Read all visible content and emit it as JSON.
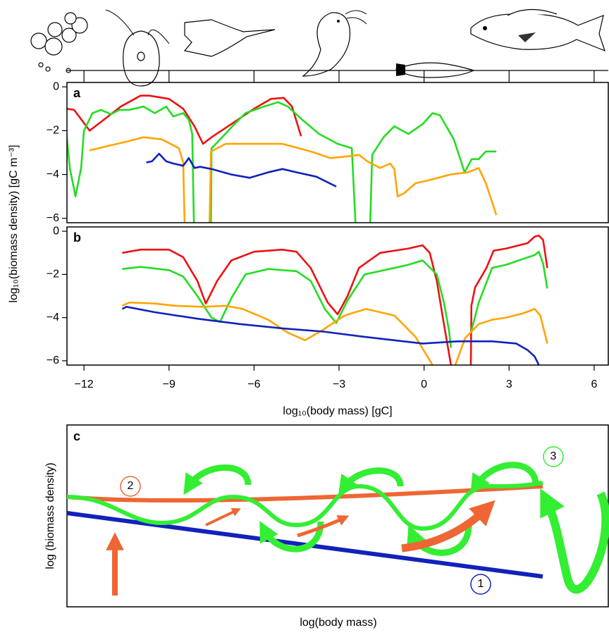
{
  "chart_data": [
    {
      "type": "line",
      "label": "a",
      "y_label": "log₁₀(biomass density) [gC m⁻³]",
      "xlim": [
        -12.6,
        6.5
      ],
      "xticks": [
        -12,
        -9,
        -6,
        -3,
        0,
        3,
        6
      ],
      "ylim": [
        -6.2,
        0.2
      ],
      "yticks": [
        {
          "value": 0,
          "label": "0"
        },
        {
          "value": -2,
          "label": "−2"
        },
        {
          "value": -4,
          "label": "−4"
        },
        {
          "value": -6,
          "label": "−6"
        }
      ],
      "series": [
        {
          "color": "#ee1111",
          "x": [
            -12.6,
            -12.35,
            -11.8,
            -11.3,
            -10.7,
            -10.0,
            -9.7,
            -9.0,
            -8.5,
            -8.1,
            -7.8,
            -7.5,
            -6.8,
            -6.0,
            -5.4,
            -4.95,
            -4.66,
            -4.34
          ],
          "values": [
            -1.0,
            -1.05,
            -2.0,
            -1.5,
            -0.9,
            -0.4,
            -0.4,
            -0.55,
            -1.0,
            -1.8,
            -2.6,
            -2.3,
            -1.7,
            -1.0,
            -0.55,
            -0.5,
            -0.9,
            -2.25
          ]
        },
        {
          "color": "#22dd22",
          "x": [
            -12.65,
            -12.5,
            -12.3,
            -12.1,
            -12.0,
            -11.7,
            -11.4,
            -11.05,
            -10.75,
            -10.4,
            -9.9,
            -9.5,
            -9.1,
            -8.85,
            -8.5,
            -8.3,
            -8.18,
            -8.12,
            -7.8,
            -7.52,
            -7.5,
            -7.27,
            -6.8,
            -6.3,
            -5.65,
            -5.15,
            -4.8,
            -4.3,
            -3.7,
            -3.05,
            -2.55,
            -2.42,
            -2.2,
            -1.9,
            -1.83,
            -1.43,
            -1.05,
            -0.55,
            -0.05,
            0.3,
            0.56,
            1.05,
            1.43,
            1.68,
            1.93,
            2.18,
            2.55
          ],
          "values": [
            -1.7,
            -3.7,
            -5.0,
            -3.7,
            -2.0,
            -1.2,
            -1.05,
            -1.25,
            -1.05,
            -1.05,
            -0.9,
            -1.2,
            -0.9,
            -1.35,
            -1.2,
            -1.5,
            -2.15,
            -6.2,
            null,
            -6.2,
            -2.8,
            -2.5,
            -1.85,
            -1.2,
            -0.9,
            -0.7,
            -0.9,
            -1.5,
            -2.15,
            -2.6,
            -2.8,
            -6.2,
            null,
            -6.2,
            -3.1,
            -2.3,
            -1.8,
            -2.15,
            -1.7,
            -1.2,
            -1.3,
            -2.4,
            -3.9,
            -3.3,
            -3.3,
            -2.95,
            -2.95
          ]
        },
        {
          "color": "#ffa500",
          "x": [
            -11.8,
            -11.0,
            -10.5,
            -9.9,
            -9.25,
            -8.65,
            -8.5,
            -8.45,
            -8.0,
            -7.57,
            -7.52,
            -7.0,
            -6.0,
            -5.0,
            -4.0,
            -3.3,
            -2.55,
            -2.3,
            -2.0,
            -1.55,
            -1.2,
            -1.05,
            -0.93,
            -0.7,
            -0.3,
            0.2,
            0.93,
            1.55,
            1.93,
            2.18,
            2.55
          ],
          "values": [
            -2.9,
            -2.65,
            -2.5,
            -2.3,
            -2.4,
            -2.8,
            -3.45,
            -6.2,
            null,
            -6.2,
            -2.95,
            -2.6,
            -2.6,
            -2.6,
            -2.95,
            -3.25,
            -3.15,
            -3.1,
            -3.4,
            -3.7,
            -3.5,
            -3.75,
            -5.0,
            -4.85,
            -4.4,
            -4.25,
            -4.0,
            -3.9,
            -3.7,
            -4.4,
            -5.85
          ]
        },
        {
          "color": "#1122bb",
          "x": [
            -9.8,
            -9.6,
            -9.35,
            -9.1,
            -8.85,
            -8.5,
            -8.3,
            -8.1,
            -7.9,
            -7.5,
            -6.8,
            -6.15,
            -5.5,
            -5.0,
            -4.5,
            -3.8,
            -3.1
          ],
          "values": [
            -3.45,
            -3.4,
            -3.05,
            -3.4,
            -3.5,
            -3.6,
            -3.25,
            -3.7,
            -3.65,
            -3.75,
            -4.0,
            -4.15,
            -3.9,
            -3.75,
            -3.9,
            -4.1,
            -4.55
          ]
        }
      ]
    },
    {
      "type": "line",
      "label": "b",
      "x_label": "log₁₀(body mass) [gC]",
      "xlim": [
        -12.6,
        6.5
      ],
      "xticks": [
        {
          "value": -12,
          "label": "−12"
        },
        {
          "value": -9,
          "label": "−9"
        },
        {
          "value": -6,
          "label": "−6"
        },
        {
          "value": -3,
          "label": "−3"
        },
        {
          "value": 0,
          "label": "0"
        },
        {
          "value": 3,
          "label": "3"
        },
        {
          "value": 6,
          "label": "6"
        }
      ],
      "ylim": [
        -6.2,
        0.2
      ],
      "yticks": [
        {
          "value": 0,
          "label": "0"
        },
        {
          "value": -2,
          "label": "−2"
        },
        {
          "value": -4,
          "label": "−4"
        },
        {
          "value": -6,
          "label": "−6"
        }
      ],
      "series": [
        {
          "color": "#ee1111",
          "x": [
            -10.65,
            -10.0,
            -9.0,
            -8.5,
            -8.0,
            -7.7,
            -7.3,
            -6.8,
            -6.0,
            -5.0,
            -4.5,
            -4.0,
            -3.4,
            -3.05,
            -2.7,
            -2.3,
            -1.55,
            -0.55,
            -0.05,
            0.2,
            0.45,
            0.7,
            0.95,
            1.3,
            1.65,
            1.67,
            1.8,
            2.2,
            2.45,
            2.9,
            3.65,
            3.9,
            4.05,
            4.2,
            4.35
          ],
          "values": [
            -1.0,
            -0.85,
            -0.85,
            -1.2,
            -2.3,
            -3.35,
            -2.3,
            -1.35,
            -0.95,
            -0.85,
            -0.95,
            -1.7,
            -3.3,
            -3.85,
            -3.0,
            -1.7,
            -1.0,
            -0.8,
            -0.65,
            -1.0,
            -2.3,
            -4.3,
            -6.2,
            null,
            -6.2,
            -3.45,
            -2.6,
            -1.7,
            -0.9,
            -0.8,
            -0.55,
            -0.25,
            -0.2,
            -0.4,
            -1.7
          ]
        },
        {
          "color": "#22dd22",
          "x": [
            -10.65,
            -10.0,
            -9.0,
            -8.5,
            -8.0,
            -7.5,
            -7.2,
            -6.8,
            -6.3,
            -5.5,
            -4.5,
            -4.0,
            -3.5,
            -3.1,
            -2.7,
            -2.1,
            -1.05,
            -0.55,
            -0.05,
            0.45,
            0.7,
            0.88,
            0.95,
            1.3,
            1.67,
            1.93,
            2.4,
            2.9,
            3.9,
            4.05,
            4.2,
            4.35
          ],
          "values": [
            -1.75,
            -1.65,
            -1.8,
            -2.1,
            -3.0,
            -4.0,
            -4.2,
            -3.1,
            -2.0,
            -1.75,
            -1.85,
            -2.3,
            -3.6,
            -4.25,
            -3.2,
            -2.0,
            -1.7,
            -1.55,
            -1.35,
            -2.0,
            -3.3,
            -4.6,
            -5.4,
            null,
            -4.6,
            -3.3,
            -1.7,
            -1.55,
            -1.1,
            -0.95,
            -1.5,
            -2.65
          ]
        },
        {
          "color": "#ffa500",
          "x": [
            -10.65,
            -10.4,
            -9.5,
            -8.8,
            -7.8,
            -7.0,
            -6.4,
            -5.5,
            -4.8,
            -4.2,
            -3.55,
            -2.8,
            -2.05,
            -1.05,
            -0.3,
            0.3,
            0.7,
            1.1,
            1.45,
            1.93,
            2.4,
            2.9,
            3.5,
            3.9,
            4.1,
            4.35
          ],
          "values": [
            -3.45,
            -3.3,
            -3.35,
            -3.45,
            -3.5,
            -3.45,
            -3.6,
            -4.1,
            -4.7,
            -5.05,
            -4.55,
            -3.9,
            -3.6,
            -3.9,
            -4.9,
            -6.2,
            null,
            -6.2,
            -4.95,
            -4.3,
            -4.1,
            -4.0,
            -3.8,
            -3.6,
            -3.9,
            -5.2
          ]
        },
        {
          "color": "#1122bb",
          "x": [
            -10.65,
            -10.5,
            -9.5,
            -8.0,
            -6.5,
            -5.0,
            -3.55,
            -2.05,
            -1.05,
            -0.05,
            1.2,
            2.4,
            3.25,
            3.65,
            3.9,
            4.05
          ],
          "values": [
            -3.6,
            -3.5,
            -3.75,
            -4.05,
            -4.3,
            -4.5,
            -4.65,
            -4.9,
            -5.05,
            -5.2,
            -5.1,
            -5.1,
            -5.2,
            -5.5,
            -5.8,
            -6.2
          ]
        }
      ]
    }
  ],
  "panel_c": {
    "label": "c",
    "x_label": "log(body mass)",
    "y_label": "log (biomass density)",
    "markers": [
      "1",
      "2",
      "3"
    ]
  }
}
